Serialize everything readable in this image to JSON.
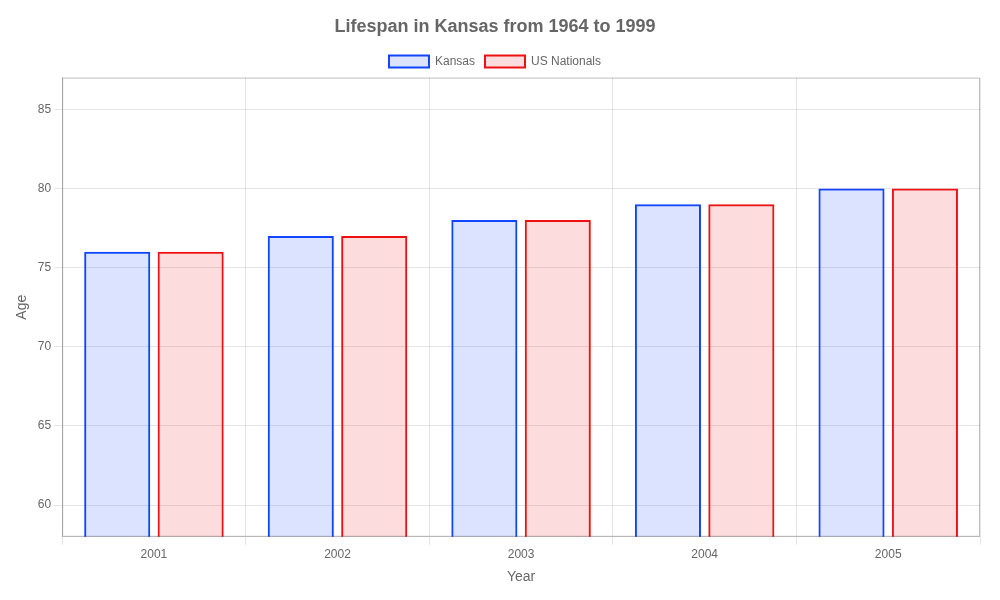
{
  "chart_data": {
    "type": "bar",
    "title": "Lifespan in Kansas from 1964 to 1999",
    "xlabel": "Year",
    "ylabel": "Age",
    "categories": [
      "2001",
      "2002",
      "2003",
      "2004",
      "2005"
    ],
    "series": [
      {
        "name": "Kansas",
        "color": "#1144ff",
        "values": [
          76,
          77,
          78,
          79,
          80
        ]
      },
      {
        "name": "US Nationals",
        "color": "#ee1111",
        "values": [
          76,
          77,
          78,
          79,
          80
        ]
      }
    ],
    "ylim": [
      58,
      87
    ],
    "yticks": [
      60,
      65,
      70,
      75,
      80,
      85
    ],
    "grid": true,
    "legend": "top"
  }
}
